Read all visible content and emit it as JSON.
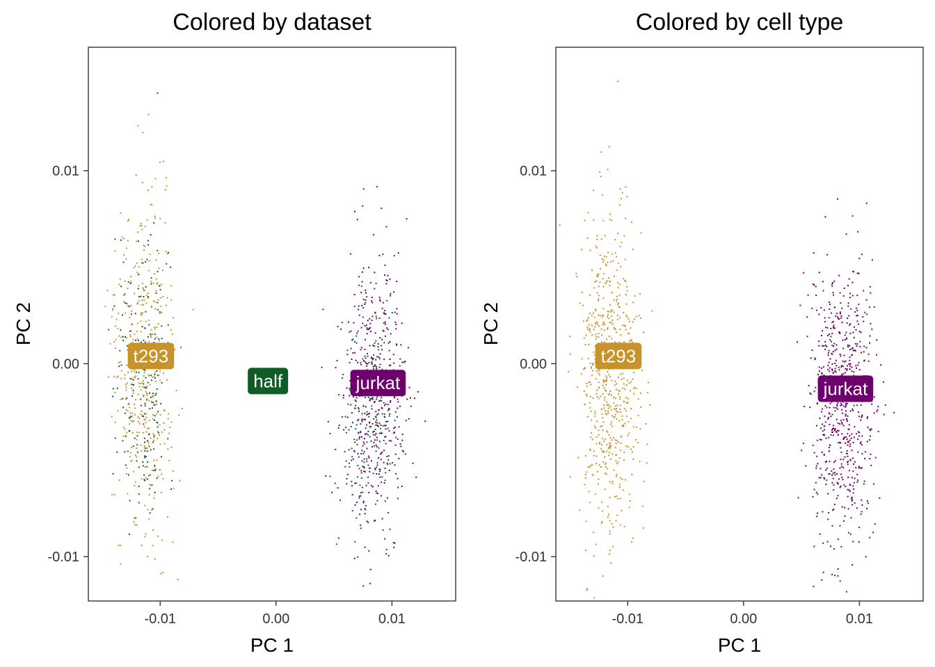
{
  "chart_data": [
    {
      "type": "scatter",
      "title": "Colored by dataset",
      "xlabel": "PC 1",
      "ylabel": "PC 2",
      "xlim": [
        -0.0162,
        0.0155
      ],
      "ylim": [
        -0.0123,
        0.0164
      ],
      "xticks": [
        {
          "value": -0.01,
          "label": "-0.01"
        },
        {
          "value": 0.0,
          "label": "0.00"
        },
        {
          "value": 0.01,
          "label": "0.01"
        }
      ],
      "yticks": [
        {
          "value": 0.01,
          "label": "0.01"
        },
        {
          "value": 0.0,
          "label": "0.00"
        },
        {
          "value": -0.01,
          "label": "-0.01"
        }
      ],
      "grid": false,
      "legend": "none",
      "series": [
        {
          "name": "t293",
          "color": "#C8922A",
          "clusters": [
            {
              "cx": -0.0115,
              "cy": -0.0002,
              "sx": 0.0013,
              "sy": 0.0042,
              "n": 420,
              "seed": 11
            }
          ]
        },
        {
          "name": "half",
          "color": "#0F5C26",
          "clusters": [
            {
              "cx": -0.0115,
              "cy": -0.0008,
              "sx": 0.0012,
              "sy": 0.0038,
              "n": 230,
              "seed": 21
            },
            {
              "cx": 0.008,
              "cy": -0.0025,
              "sx": 0.0013,
              "sy": 0.0033,
              "n": 240,
              "seed": 22
            }
          ]
        },
        {
          "name": "jurkat",
          "color": "#6E006E",
          "clusters": [
            {
              "cx": 0.0085,
              "cy": -0.0015,
              "sx": 0.0014,
              "sy": 0.0038,
              "n": 440,
              "seed": 31
            }
          ]
        }
      ],
      "labels": [
        {
          "text": "t293",
          "x": -0.0108,
          "y": 0.0004,
          "color": "#C8922A"
        },
        {
          "text": "half",
          "x": -0.0007,
          "y": -0.0009,
          "color": "#0F5C26"
        },
        {
          "text": "jurkat",
          "x": 0.0088,
          "y": -0.001,
          "color": "#6E006E"
        }
      ]
    },
    {
      "type": "scatter",
      "title": "Colored by cell type",
      "xlabel": "PC 1",
      "ylabel": "PC 2",
      "xlim": [
        -0.0162,
        0.0155
      ],
      "ylim": [
        -0.0123,
        0.0164
      ],
      "xticks": [
        {
          "value": -0.01,
          "label": "-0.01"
        },
        {
          "value": 0.0,
          "label": "0.00"
        },
        {
          "value": 0.01,
          "label": "0.01"
        }
      ],
      "yticks": [
        {
          "value": 0.01,
          "label": "0.01"
        },
        {
          "value": 0.0,
          "label": "0.00"
        },
        {
          "value": -0.01,
          "label": "-0.01"
        }
      ],
      "grid": false,
      "legend": "none",
      "series": [
        {
          "name": "t293",
          "color": "#C8922A",
          "clusters": [
            {
              "cx": -0.0115,
              "cy": -0.0005,
              "sx": 0.0013,
              "sy": 0.004,
              "n": 650,
              "seed": 41
            }
          ]
        },
        {
          "name": "jurkat",
          "color": "#6E006E",
          "clusters": [
            {
              "cx": 0.0085,
              "cy": -0.002,
              "sx": 0.0014,
              "sy": 0.0036,
              "n": 680,
              "seed": 51
            }
          ]
        }
      ],
      "labels": [
        {
          "text": "t293",
          "x": -0.0108,
          "y": 0.0004,
          "color": "#C8922A"
        },
        {
          "text": "jurkat",
          "x": 0.0088,
          "y": -0.0013,
          "color": "#6E006E"
        }
      ]
    }
  ]
}
